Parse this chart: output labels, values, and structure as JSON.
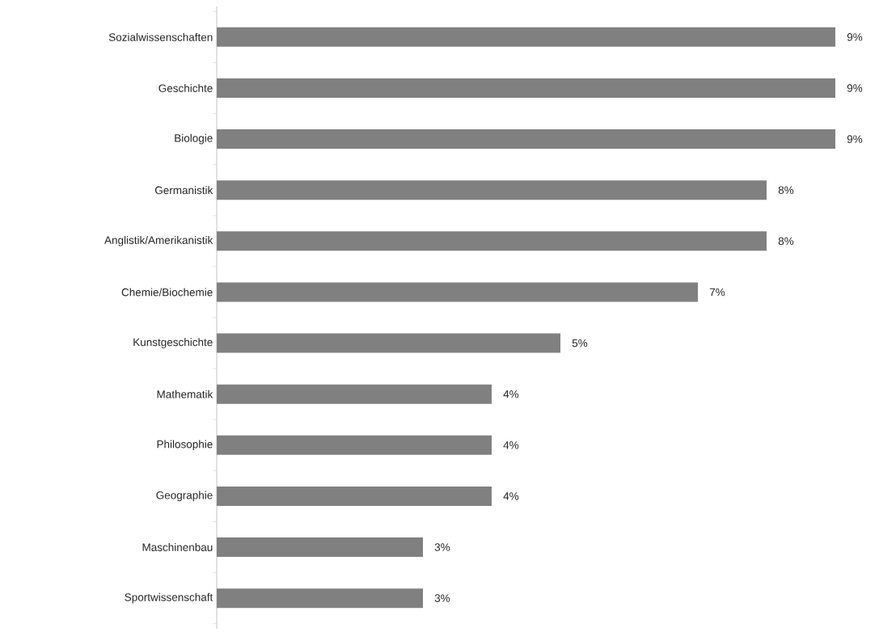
{
  "chart_data": {
    "type": "bar",
    "orientation": "horizontal",
    "categories": [
      "Sozialwissenschaften",
      "Geschichte",
      "Biologie",
      "Germanistik",
      "Anglistik/Amerikanistik",
      "Chemie/Biochemie",
      "Kunstgeschichte",
      "Mathematik",
      "Philosophie",
      "Geographie",
      "Maschinenbau",
      "Sportwissenschaft"
    ],
    "values": [
      9,
      9,
      9,
      8,
      8,
      7,
      5,
      4,
      4,
      4,
      3,
      3
    ],
    "color": "#808080",
    "value_labels": [
      "9%",
      "9%",
      "9%",
      "8%",
      "8%",
      "7%",
      "5%",
      "4%",
      "4%",
      "4%",
      "3%",
      "3%"
    ]
  }
}
